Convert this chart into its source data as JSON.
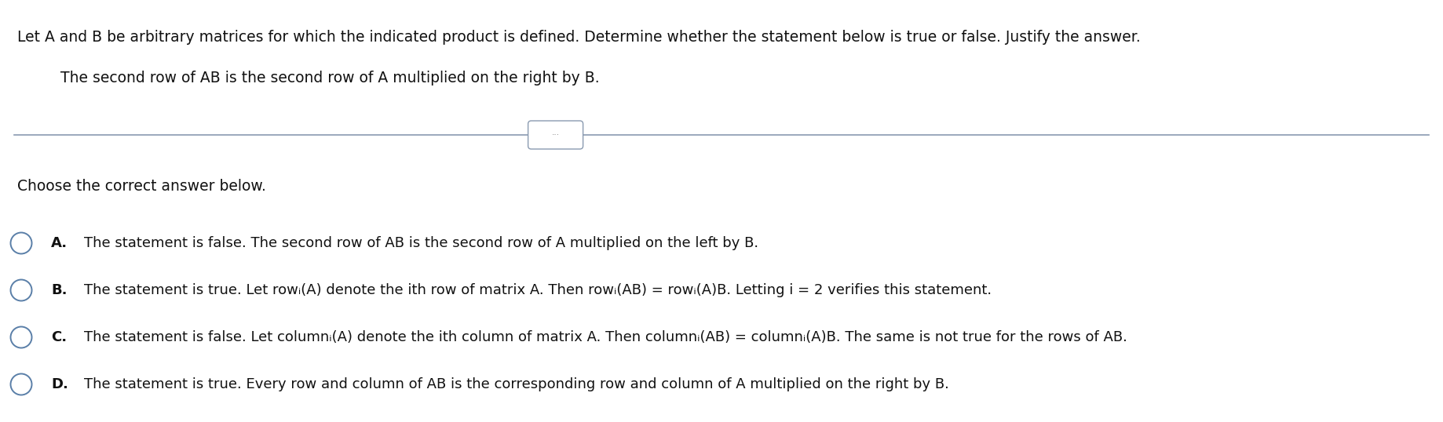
{
  "background_color": "#ffffff",
  "header_text": "Let A and B be arbitrary matrices for which the indicated product is defined. Determine whether the statement below is true or false. Justify the answer.",
  "subtext": "The second row of AB is the second row of A multiplied on the right by B.",
  "divider_color": "#8a9ab0",
  "dots_text": "···",
  "choose_text": "Choose the correct answer below.",
  "options": [
    {
      "label": "A.",
      "text": "The statement is false. The second row of AB is the second row of A multiplied on the left by B."
    },
    {
      "label": "B.",
      "text": "The statement is true. Let rowᵢ(A) denote the ith row of matrix A. Then rowᵢ(AB) = rowᵢ(A)B. Letting i = 2 verifies this statement."
    },
    {
      "label": "C.",
      "text": "The statement is false. Let columnᵢ(A) denote the ith column of matrix A. Then columnᵢ(AB) = columnᵢ(A)B. The same is not true for the rows of AB."
    },
    {
      "label": "D.",
      "text": "The statement is true. Every row and column of AB is the corresponding row and column of A multiplied on the right by B."
    }
  ],
  "circle_color": "#5a7fa8",
  "font_size_header": 13.5,
  "font_size_sub": 13.5,
  "font_size_choose": 13.5,
  "font_size_options": 13.0,
  "text_color": "#111111"
}
